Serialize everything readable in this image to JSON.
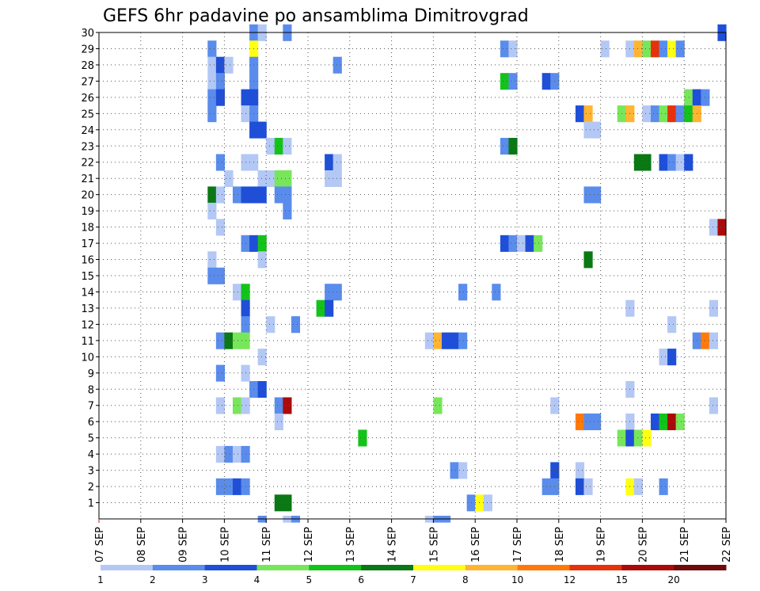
{
  "chart_data": {
    "type": "heatmap",
    "title": "GEFS 6hr padavine po ansamblima Dimitrovgrad",
    "x_tick_labels": [
      "07 SEP",
      "08 SEP",
      "09 SEP",
      "10 SEP",
      "11 SEP",
      "12 SEP",
      "13 SEP",
      "14 SEP",
      "15 SEP",
      "16 SEP",
      "17 SEP",
      "18 SEP",
      "19 SEP",
      "20 SEP",
      "21 SEP",
      "22 SEP"
    ],
    "y_tick_labels": [
      "1",
      "2",
      "3",
      "4",
      "5",
      "6",
      "7",
      "8",
      "9",
      "10",
      "11",
      "12",
      "13",
      "14",
      "15",
      "16",
      "17",
      "18",
      "19",
      "20",
      "21",
      "22",
      "23",
      "24",
      "25",
      "26",
      "27",
      "28",
      "29",
      "30"
    ],
    "ylim": [
      0,
      30
    ],
    "grid": true,
    "colorbar": {
      "colors": [
        "#b4c8f5",
        "#5a8cec",
        "#1f4fd8",
        "#78e65a",
        "#14c31a",
        "#0a7814",
        "#ffff14",
        "#ffb432",
        "#ff7a0a",
        "#e6320a",
        "#aa0a0a",
        "#6e0a0a"
      ],
      "labels": [
        "1",
        "2",
        "3",
        "4",
        "5",
        "6",
        "7",
        "8",
        "10",
        "12",
        "15",
        "20"
      ]
    },
    "series": [
      {
        "member": 30,
        "cells": [
          [
            3.6,
            "#5a8cec"
          ],
          [
            3.8,
            "#b4c8f5"
          ],
          [
            4.4,
            "#5a8cec"
          ],
          [
            14.8,
            "#1f4fd8"
          ]
        ]
      },
      {
        "member": 29,
        "cells": [
          [
            2.6,
            "#5a8cec"
          ],
          [
            3.6,
            "#ffff14"
          ],
          [
            9.6,
            "#5a8cec"
          ],
          [
            9.8,
            "#b4c8f5"
          ],
          [
            12.0,
            "#b4c8f5"
          ],
          [
            12.6,
            "#b4c8f5"
          ],
          [
            12.8,
            "#ffb432"
          ],
          [
            13.0,
            "#78e65a"
          ],
          [
            13.2,
            "#e6320a"
          ],
          [
            13.4,
            "#5a8cec"
          ],
          [
            13.6,
            "#ffff14"
          ],
          [
            13.8,
            "#5a8cec"
          ]
        ]
      },
      {
        "member": 28,
        "cells": [
          [
            2.6,
            "#b4c8f5"
          ],
          [
            2.8,
            "#1f4fd8"
          ],
          [
            3.0,
            "#b4c8f5"
          ],
          [
            3.6,
            "#5a8cec"
          ],
          [
            5.6,
            "#5a8cec"
          ]
        ]
      },
      {
        "member": 27,
        "cells": [
          [
            2.6,
            "#b4c8f5"
          ],
          [
            2.8,
            "#5a8cec"
          ],
          [
            3.6,
            "#5a8cec"
          ],
          [
            9.6,
            "#14c31a"
          ],
          [
            9.8,
            "#5a8cec"
          ],
          [
            10.6,
            "#1f4fd8"
          ],
          [
            10.8,
            "#5a8cec"
          ]
        ]
      },
      {
        "member": 26,
        "cells": [
          [
            2.6,
            "#5a8cec"
          ],
          [
            2.8,
            "#1f4fd8"
          ],
          [
            3.4,
            "#1f4fd8"
          ],
          [
            3.6,
            "#1f4fd8"
          ],
          [
            14.0,
            "#78e65a"
          ],
          [
            14.2,
            "#1f4fd8"
          ],
          [
            14.4,
            "#5a8cec"
          ]
        ]
      },
      {
        "member": 25,
        "cells": [
          [
            2.6,
            "#5a8cec"
          ],
          [
            3.4,
            "#b4c8f5"
          ],
          [
            3.6,
            "#5a8cec"
          ],
          [
            11.4,
            "#1f4fd8"
          ],
          [
            11.6,
            "#ffb432"
          ],
          [
            12.4,
            "#78e65a"
          ],
          [
            12.6,
            "#ffb432"
          ],
          [
            13.0,
            "#b4c8f5"
          ],
          [
            13.2,
            "#5a8cec"
          ],
          [
            13.4,
            "#78e65a"
          ],
          [
            13.6,
            "#e6320a"
          ],
          [
            13.8,
            "#5a8cec"
          ],
          [
            14.0,
            "#14c31a"
          ],
          [
            14.2,
            "#ffb432"
          ]
        ]
      },
      {
        "member": 24,
        "cells": [
          [
            3.6,
            "#1f4fd8"
          ],
          [
            3.8,
            "#1f4fd8"
          ],
          [
            11.6,
            "#b4c8f5"
          ],
          [
            11.8,
            "#b4c8f5"
          ]
        ]
      },
      {
        "member": 23,
        "cells": [
          [
            4.0,
            "#b4c8f5"
          ],
          [
            4.2,
            "#14c31a"
          ],
          [
            4.4,
            "#b4c8f5"
          ],
          [
            9.6,
            "#5a8cec"
          ],
          [
            9.8,
            "#0a7814"
          ]
        ]
      },
      {
        "member": 22,
        "cells": [
          [
            2.8,
            "#5a8cec"
          ],
          [
            3.4,
            "#b4c8f5"
          ],
          [
            3.6,
            "#b4c8f5"
          ],
          [
            5.4,
            "#1f4fd8"
          ],
          [
            5.6,
            "#b4c8f5"
          ],
          [
            12.8,
            "#0a7814"
          ],
          [
            13.0,
            "#0a7814"
          ],
          [
            13.4,
            "#1f4fd8"
          ],
          [
            13.6,
            "#5a8cec"
          ],
          [
            13.8,
            "#b4c8f5"
          ],
          [
            14.0,
            "#1f4fd8"
          ]
        ]
      },
      {
        "member": 21,
        "cells": [
          [
            3.0,
            "#b4c8f5"
          ],
          [
            3.8,
            "#b4c8f5"
          ],
          [
            4.0,
            "#b4c8f5"
          ],
          [
            4.2,
            "#78e65a"
          ],
          [
            4.4,
            "#78e65a"
          ],
          [
            5.4,
            "#b4c8f5"
          ],
          [
            5.6,
            "#b4c8f5"
          ]
        ]
      },
      {
        "member": 20,
        "cells": [
          [
            2.6,
            "#0a7814"
          ],
          [
            2.8,
            "#b4c8f5"
          ],
          [
            3.2,
            "#5a8cec"
          ],
          [
            3.4,
            "#1f4fd8"
          ],
          [
            3.6,
            "#1f4fd8"
          ],
          [
            3.8,
            "#1f4fd8"
          ],
          [
            4.2,
            "#5a8cec"
          ],
          [
            4.4,
            "#5a8cec"
          ],
          [
            11.6,
            "#5a8cec"
          ],
          [
            11.8,
            "#5a8cec"
          ]
        ]
      },
      {
        "member": 19,
        "cells": [
          [
            2.6,
            "#b4c8f5"
          ],
          [
            4.4,
            "#5a8cec"
          ]
        ]
      },
      {
        "member": 18,
        "cells": [
          [
            2.8,
            "#b4c8f5"
          ],
          [
            14.6,
            "#b4c8f5"
          ],
          [
            14.8,
            "#aa0a0a"
          ]
        ]
      },
      {
        "member": 17,
        "cells": [
          [
            3.4,
            "#5a8cec"
          ],
          [
            3.6,
            "#1f4fd8"
          ],
          [
            3.8,
            "#14c31a"
          ],
          [
            9.6,
            "#1f4fd8"
          ],
          [
            9.8,
            "#5a8cec"
          ],
          [
            10.0,
            "#b4c8f5"
          ],
          [
            10.2,
            "#1f4fd8"
          ],
          [
            10.4,
            "#78e65a"
          ]
        ]
      },
      {
        "member": 16,
        "cells": [
          [
            2.6,
            "#b4c8f5"
          ],
          [
            3.8,
            "#b4c8f5"
          ],
          [
            11.6,
            "#0a7814"
          ]
        ]
      },
      {
        "member": 15,
        "cells": [
          [
            2.6,
            "#5a8cec"
          ],
          [
            2.8,
            "#5a8cec"
          ]
        ]
      },
      {
        "member": 14,
        "cells": [
          [
            3.2,
            "#b4c8f5"
          ],
          [
            3.4,
            "#14c31a"
          ],
          [
            5.4,
            "#5a8cec"
          ],
          [
            5.6,
            "#5a8cec"
          ],
          [
            8.6,
            "#5a8cec"
          ],
          [
            9.4,
            "#5a8cec"
          ]
        ]
      },
      {
        "member": 13,
        "cells": [
          [
            3.4,
            "#1f4fd8"
          ],
          [
            5.2,
            "#14c31a"
          ],
          [
            5.4,
            "#1f4fd8"
          ],
          [
            12.6,
            "#b4c8f5"
          ],
          [
            14.6,
            "#b4c8f5"
          ]
        ]
      },
      {
        "member": 12,
        "cells": [
          [
            3.4,
            "#5a8cec"
          ],
          [
            4.0,
            "#b4c8f5"
          ],
          [
            4.6,
            "#5a8cec"
          ],
          [
            13.6,
            "#b4c8f5"
          ]
        ]
      },
      {
        "member": 11,
        "cells": [
          [
            2.8,
            "#5a8cec"
          ],
          [
            3.0,
            "#0a7814"
          ],
          [
            3.2,
            "#78e65a"
          ],
          [
            3.4,
            "#78e65a"
          ],
          [
            7.8,
            "#b4c8f5"
          ],
          [
            8.0,
            "#ffb432"
          ],
          [
            8.2,
            "#1f4fd8"
          ],
          [
            8.4,
            "#1f4fd8"
          ],
          [
            8.6,
            "#5a8cec"
          ],
          [
            14.2,
            "#5a8cec"
          ],
          [
            14.4,
            "#ff7a0a"
          ],
          [
            14.6,
            "#b4c8f5"
          ]
        ]
      },
      {
        "member": 10,
        "cells": [
          [
            3.8,
            "#b4c8f5"
          ],
          [
            13.4,
            "#b4c8f5"
          ],
          [
            13.6,
            "#1f4fd8"
          ]
        ]
      },
      {
        "member": 9,
        "cells": [
          [
            2.8,
            "#5a8cec"
          ],
          [
            3.4,
            "#b4c8f5"
          ]
        ]
      },
      {
        "member": 8,
        "cells": [
          [
            3.6,
            "#5a8cec"
          ],
          [
            3.8,
            "#1f4fd8"
          ],
          [
            12.6,
            "#b4c8f5"
          ]
        ]
      },
      {
        "member": 7,
        "cells": [
          [
            2.8,
            "#b4c8f5"
          ],
          [
            3.2,
            "#78e65a"
          ],
          [
            3.4,
            "#b4c8f5"
          ],
          [
            4.2,
            "#5a8cec"
          ],
          [
            4.4,
            "#aa0a0a"
          ],
          [
            8.0,
            "#78e65a"
          ],
          [
            10.8,
            "#b4c8f5"
          ],
          [
            14.6,
            "#b4c8f5"
          ]
        ]
      },
      {
        "member": 6,
        "cells": [
          [
            4.2,
            "#b4c8f5"
          ],
          [
            11.4,
            "#ff7a0a"
          ],
          [
            11.6,
            "#5a8cec"
          ],
          [
            11.8,
            "#5a8cec"
          ],
          [
            12.6,
            "#b4c8f5"
          ],
          [
            13.2,
            "#1f4fd8"
          ],
          [
            13.4,
            "#14c31a"
          ],
          [
            13.6,
            "#aa0a0a"
          ],
          [
            13.8,
            "#78e65a"
          ]
        ]
      },
      {
        "member": 5,
        "cells": [
          [
            6.2,
            "#14c31a"
          ],
          [
            12.4,
            "#78e65a"
          ],
          [
            12.6,
            "#1f4fd8"
          ],
          [
            12.8,
            "#78e65a"
          ],
          [
            13.0,
            "#ffff14"
          ]
        ]
      },
      {
        "member": 4,
        "cells": [
          [
            2.8,
            "#b4c8f5"
          ],
          [
            3.0,
            "#5a8cec"
          ],
          [
            3.2,
            "#b4c8f5"
          ],
          [
            3.4,
            "#5a8cec"
          ]
        ]
      },
      {
        "member": 3,
        "cells": [
          [
            8.4,
            "#5a8cec"
          ],
          [
            8.6,
            "#b4c8f5"
          ],
          [
            10.8,
            "#1f4fd8"
          ],
          [
            11.4,
            "#b4c8f5"
          ]
        ]
      },
      {
        "member": 2,
        "cells": [
          [
            2.8,
            "#5a8cec"
          ],
          [
            3.0,
            "#5a8cec"
          ],
          [
            3.2,
            "#1f4fd8"
          ],
          [
            3.4,
            "#5a8cec"
          ],
          [
            10.6,
            "#5a8cec"
          ],
          [
            10.8,
            "#5a8cec"
          ],
          [
            11.4,
            "#1f4fd8"
          ],
          [
            11.6,
            "#b4c8f5"
          ],
          [
            12.6,
            "#ffff14"
          ],
          [
            12.8,
            "#b4c8f5"
          ],
          [
            13.4,
            "#5a8cec"
          ]
        ]
      },
      {
        "member": 1,
        "cells": [
          [
            4.2,
            "#0a7814"
          ],
          [
            4.4,
            "#0a7814"
          ],
          [
            8.8,
            "#5a8cec"
          ],
          [
            9.0,
            "#ffff14"
          ],
          [
            9.2,
            "#b4c8f5"
          ]
        ]
      },
      {
        "member": 0,
        "cells": [
          [
            3.8,
            "#5a8cec"
          ],
          [
            4.4,
            "#b4c8f5"
          ],
          [
            4.6,
            "#5a8cec"
          ],
          [
            7.8,
            "#b4c8f5"
          ],
          [
            8.0,
            "#5a8cec"
          ],
          [
            8.2,
            "#5a8cec"
          ]
        ]
      }
    ]
  }
}
